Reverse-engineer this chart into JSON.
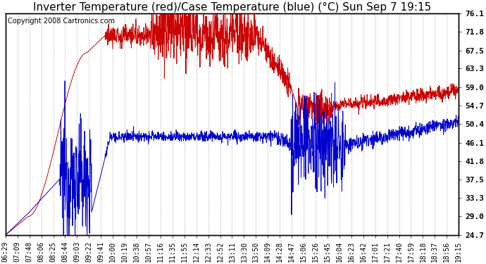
{
  "title": "Inverter Temperature (red)/Case Temperature (blue) (°C) Sun Sep 7 19:15",
  "copyright": "Copyright 2008 Cartronics.com",
  "ylabel_right_ticks": [
    24.7,
    29.0,
    33.3,
    37.5,
    41.8,
    46.1,
    50.4,
    54.7,
    59.0,
    63.3,
    67.5,
    71.8,
    76.1
  ],
  "xlabels": [
    "06:29",
    "07:09",
    "07:48",
    "08:06",
    "08:25",
    "08:44",
    "09:03",
    "09:22",
    "09:41",
    "10:00",
    "10:19",
    "10:38",
    "10:57",
    "11:16",
    "11:35",
    "11:55",
    "12:14",
    "12:33",
    "12:52",
    "13:11",
    "13:30",
    "13:50",
    "14:09",
    "14:28",
    "14:47",
    "15:06",
    "15:26",
    "15:45",
    "16:04",
    "16:23",
    "16:42",
    "17:01",
    "17:21",
    "17:40",
    "17:59",
    "18:18",
    "18:37",
    "18:56",
    "19:15"
  ],
  "red_color": "#cc0000",
  "blue_color": "#0000cc",
  "bg_color": "#ffffff",
  "grid_color": "#bbbbbb",
  "title_fontsize": 11,
  "copyright_fontsize": 7,
  "tick_fontsize": 7,
  "ymin": 24.7,
  "ymax": 76.1
}
